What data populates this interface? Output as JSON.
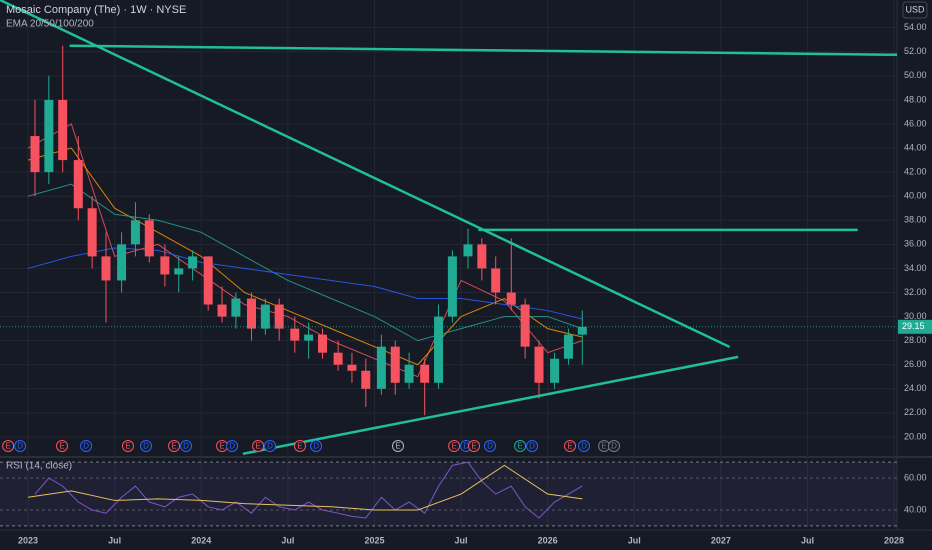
{
  "chart_data": [
    {
      "type": "candlestick",
      "title": "Mosaic Company (The) · 1W · NYSE",
      "indicator_label": "EMA 20/50/100/200",
      "currency": "USD",
      "x": [
        2023.04,
        2023.12,
        2023.2,
        2023.29,
        2023.37,
        2023.45,
        2023.54,
        2023.62,
        2023.7,
        2023.79,
        2023.87,
        2023.95,
        2024.04,
        2024.12,
        2024.2,
        2024.29,
        2024.37,
        2024.45,
        2024.54,
        2024.62,
        2024.7,
        2024.79,
        2024.87,
        2024.95,
        2025.04,
        2025.12,
        2025.2,
        2025.29,
        2025.37,
        2025.45,
        2025.54,
        2025.62,
        2025.7,
        2025.79,
        2025.87,
        2025.95,
        2026.04,
        2026.12,
        2026.2
      ],
      "open": [
        45,
        42,
        48,
        43,
        39,
        35,
        33,
        36,
        38,
        35,
        33.5,
        34,
        35,
        31,
        30,
        31.5,
        29,
        31,
        29,
        28,
        28.5,
        27,
        26,
        25.5,
        24,
        27.5,
        24.5,
        26,
        24.5,
        30,
        35,
        36,
        34,
        32,
        31,
        27.5,
        24.5,
        26.5,
        28.5
      ],
      "high": [
        48,
        50,
        52.5,
        45,
        40,
        37,
        37,
        39.5,
        38.5,
        36,
        35,
        35.5,
        35,
        32.5,
        32,
        32,
        31.5,
        31.5,
        30,
        29.5,
        29,
        28,
        27,
        26.5,
        28.5,
        28,
        27,
        26.5,
        31,
        35.5,
        37.3,
        36.5,
        35,
        36.5,
        31.5,
        28,
        27,
        29,
        30.5
      ],
      "low": [
        40,
        41,
        42,
        38,
        34,
        29.5,
        32,
        35,
        34.5,
        32.5,
        32,
        33,
        30.5,
        29.5,
        29,
        28,
        28.5,
        28,
        27,
        26.5,
        26.5,
        25.5,
        24.5,
        22.5,
        23.5,
        23.5,
        24,
        21.8,
        24,
        29.5,
        34,
        33,
        31,
        30.5,
        26.5,
        23.2,
        24,
        26,
        26
      ],
      "close": [
        42,
        48,
        43,
        39,
        35,
        33,
        36,
        38,
        35,
        33.5,
        34,
        35,
        31,
        30,
        31.5,
        29,
        31,
        29,
        28,
        28.5,
        27,
        26,
        25.5,
        24,
        27.5,
        24.5,
        26,
        24.5,
        30,
        35,
        36,
        34,
        32,
        31,
        27.5,
        24.5,
        26.5,
        28.5,
        29.15
      ],
      "up_color": "#22ab94",
      "down_color": "#f7525f",
      "xlim": [
        2022.838,
        2028.017
      ],
      "ylim": [
        18.5,
        56.3
      ],
      "xticks": [
        2023,
        {
          "value": 2023.5,
          "label": "Jul"
        },
        2024,
        {
          "value": 2024.5,
          "label": "Jul"
        },
        2025,
        {
          "value": 2025.5,
          "label": "Jul"
        },
        2026,
        {
          "value": 2026.5,
          "label": "Jul"
        },
        2027,
        {
          "value": 2027.5,
          "label": "Jul"
        },
        2028
      ],
      "yticks": [
        {
          "value": 20,
          "label": "20.00"
        },
        {
          "value": 22,
          "label": "22.00"
        },
        {
          "value": 24,
          "label": "24.00"
        },
        {
          "value": 26,
          "label": "26.00"
        },
        {
          "value": 28,
          "label": "28.00"
        },
        {
          "value": 30,
          "label": "30.00"
        },
        {
          "value": 32,
          "label": "32.00"
        },
        {
          "value": 34,
          "label": "34.00"
        },
        {
          "value": 36,
          "label": "36.00"
        },
        {
          "value": 38,
          "label": "38.00"
        },
        {
          "value": 40,
          "label": "40.00"
        },
        {
          "value": 42,
          "label": "42.00"
        },
        {
          "value": 44,
          "label": "44.00"
        },
        {
          "value": 46,
          "label": "46.00"
        },
        {
          "value": 48,
          "label": "48.00"
        },
        {
          "value": 50,
          "label": "50.00"
        },
        {
          "value": 52,
          "label": "52.00"
        },
        {
          "value": 54,
          "label": "54.00"
        }
      ],
      "grid": true,
      "overlays": [
        {
          "color": "#f7525f",
          "x": [
            2023.0,
            2023.25,
            2023.5,
            2023.75,
            2024.0,
            2024.25,
            2024.5,
            2024.75,
            2025.0,
            2025.25,
            2025.5,
            2025.75,
            2026.0,
            2026.2
          ],
          "values": [
            44,
            46,
            35,
            36,
            33.5,
            31,
            30,
            28,
            26.5,
            25,
            33,
            31.3,
            27,
            28
          ]
        },
        {
          "color": "#ff9800",
          "x": [
            2023.0,
            2023.25,
            2023.5,
            2023.75,
            2024.0,
            2024.25,
            2024.5,
            2024.75,
            2025.0,
            2025.25,
            2025.5,
            2025.75,
            2026.0,
            2026.2
          ],
          "values": [
            43,
            44,
            39,
            37,
            35,
            32,
            30.5,
            29,
            27.5,
            26,
            30,
            31.5,
            29,
            28.3
          ]
        },
        {
          "color": "#26a69a",
          "x": [
            2023.0,
            2023.25,
            2023.5,
            2023.75,
            2024.0,
            2024.25,
            2024.5,
            2024.75,
            2025.0,
            2025.25,
            2025.5,
            2025.75,
            2026.0,
            2026.2
          ],
          "values": [
            40,
            41,
            38.5,
            38,
            37,
            35,
            33,
            31.5,
            30,
            28,
            29,
            30,
            30,
            29
          ]
        },
        {
          "color": "#2962ff",
          "x": [
            2023.0,
            2023.25,
            2023.5,
            2023.75,
            2024.0,
            2024.25,
            2024.5,
            2024.75,
            2025.0,
            2025.25,
            2025.5,
            2025.75,
            2026.0,
            2026.2
          ],
          "values": [
            34,
            35,
            35.7,
            35.5,
            34.5,
            34,
            33.5,
            33,
            32.5,
            31.5,
            31.5,
            31,
            30.5,
            29.8
          ]
        }
      ],
      "drawings": [
        {
          "color": "#1fbf9a",
          "x": [
            2022.838,
            2027.05
          ],
          "values": [
            56.3,
            27.48
          ]
        },
        {
          "color": "#1fbf9a",
          "x": [
            2023.24,
            2028.017
          ],
          "values": [
            52.5,
            51.75
          ]
        },
        {
          "color": "#1fbf9a",
          "x": [
            2025.6,
            2027.79
          ],
          "values": [
            37.2,
            37.2
          ]
        },
        {
          "color": "#1fbf9a",
          "x": [
            2024.24,
            2027.1
          ],
          "values": [
            18.6,
            26.65
          ]
        }
      ],
      "events": [
        {
          "x": 2022.885,
          "label": "E",
          "color": "#f7525f"
        },
        {
          "x": 2022.954,
          "label": "D",
          "color": "#2962ff"
        },
        {
          "x": 2023.196,
          "label": "E",
          "color": "#f7525f"
        },
        {
          "x": 2023.335,
          "label": "D",
          "color": "#2962ff"
        },
        {
          "x": 2023.577,
          "label": "E",
          "color": "#f7525f"
        },
        {
          "x": 2023.681,
          "label": "D",
          "color": "#2962ff"
        },
        {
          "x": 2023.843,
          "label": "E",
          "color": "#f7525f"
        },
        {
          "x": 2023.912,
          "label": "D",
          "color": "#2962ff"
        },
        {
          "x": 2024.12,
          "label": "E",
          "color": "#f7525f"
        },
        {
          "x": 2024.178,
          "label": "D",
          "color": "#2962ff"
        },
        {
          "x": 2024.328,
          "label": "E",
          "color": "#f7525f"
        },
        {
          "x": 2024.397,
          "label": "D",
          "color": "#2962ff"
        },
        {
          "x": 2024.57,
          "label": "E",
          "color": "#f7525f"
        },
        {
          "x": 2024.663,
          "label": "D",
          "color": "#2962ff"
        },
        {
          "x": 2025.136,
          "label": "E",
          "color": "#b2b5be"
        },
        {
          "x": 2025.46,
          "label": "E",
          "color": "#f7525f"
        },
        {
          "x": 2025.529,
          "label": "D",
          "color": "#2962ff"
        },
        {
          "x": 2025.575,
          "label": "E",
          "color": "#f7525f"
        },
        {
          "x": 2025.667,
          "label": "D",
          "color": "#2962ff"
        },
        {
          "x": 2025.841,
          "label": "E",
          "color": "#22ab94"
        },
        {
          "x": 2025.91,
          "label": "D",
          "color": "#2962ff"
        },
        {
          "x": 2026.129,
          "label": "E",
          "color": "#f7525f"
        },
        {
          "x": 2026.21,
          "label": "D",
          "color": "#2962ff"
        },
        {
          "x": 2026.326,
          "label": "E",
          "color": "#787b86"
        },
        {
          "x": 2026.383,
          "label": "D",
          "color": "#787b86"
        }
      ]
    },
    {
      "type": "line",
      "title": "RSI (14, close)",
      "xlim": [
        2022.838,
        2028.017
      ],
      "ylim": [
        28.7,
        72
      ],
      "yticks": [
        {
          "value": 60,
          "label": "60.00"
        },
        {
          "value": 40,
          "label": "40.00"
        }
      ],
      "band": [
        30,
        70
      ],
      "band_color": "#7e57c2",
      "series": [
        {
          "color": "#7e57c2",
          "x": [
            2023.04,
            2023.12,
            2023.2,
            2023.29,
            2023.37,
            2023.45,
            2023.54,
            2023.62,
            2023.7,
            2023.79,
            2023.87,
            2023.95,
            2024.04,
            2024.12,
            2024.2,
            2024.29,
            2024.37,
            2024.45,
            2024.54,
            2024.62,
            2024.7,
            2024.79,
            2024.87,
            2024.95,
            2025.04,
            2025.12,
            2025.2,
            2025.29,
            2025.37,
            2025.45,
            2025.54,
            2025.62,
            2025.7,
            2025.79,
            2025.87,
            2025.95,
            2026.04,
            2026.12,
            2026.2
          ],
          "values": [
            50,
            60,
            55,
            45,
            40,
            38,
            48,
            55,
            45,
            42,
            48,
            50,
            42,
            40,
            45,
            38,
            48,
            42,
            40,
            45,
            40,
            38,
            36,
            35,
            48,
            40,
            45,
            38,
            55,
            68,
            70,
            58,
            50,
            55,
            42,
            35,
            45,
            50,
            55
          ]
        },
        {
          "color": "#e6c35a",
          "x": [
            2023.0,
            2023.25,
            2023.5,
            2023.75,
            2024.0,
            2024.25,
            2024.5,
            2024.75,
            2025.0,
            2025.25,
            2025.5,
            2025.75,
            2026.0,
            2026.2
          ],
          "values": [
            48,
            52,
            46,
            47,
            46,
            44,
            43,
            42,
            40,
            40,
            50,
            68,
            50,
            47
          ]
        }
      ]
    }
  ]
}
